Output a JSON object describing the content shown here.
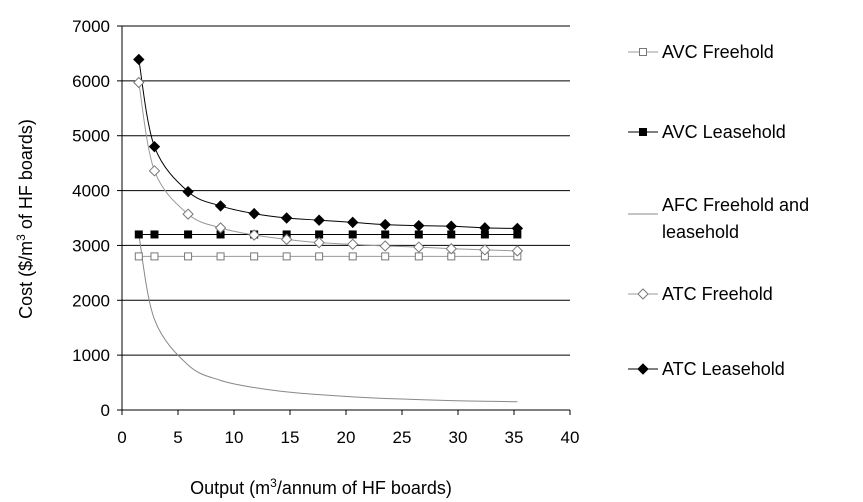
{
  "chart_data": {
    "type": "line",
    "title": "",
    "xlabel": {
      "pre": "Output (m",
      "sup": "3",
      "post": "/annum of HF boards)"
    },
    "ylabel": {
      "pre": "Cost ($/m",
      "sup": "3",
      "post": " of HF boards)"
    },
    "xlim": [
      0,
      40
    ],
    "ylim": [
      0,
      7000
    ],
    "xticks": [
      0,
      5,
      10,
      15,
      20,
      25,
      30,
      35,
      40
    ],
    "yticks": [
      0,
      1000,
      2000,
      3000,
      4000,
      5000,
      6000,
      7000
    ],
    "grid": "horizontal",
    "legend_position": "right",
    "x": [
      1.5,
      2.9,
      5.9,
      8.8,
      11.8,
      14.7,
      17.6,
      20.6,
      23.5,
      26.5,
      29.4,
      32.4,
      35.3
    ],
    "series": [
      {
        "name": "AVC Freehold",
        "marker": "square-open",
        "values": [
          2800,
          2800,
          2800,
          2800,
          2800,
          2800,
          2800,
          2800,
          2800,
          2800,
          2800,
          2800,
          2800
        ]
      },
      {
        "name": "AVC Leasehold",
        "marker": "square-filled",
        "values": [
          3200,
          3200,
          3200,
          3200,
          3200,
          3200,
          3200,
          3200,
          3200,
          3200,
          3200,
          3200,
          3200
        ]
      },
      {
        "name": "AFC Freehold and leasehold",
        "name_lines": [
          "AFC Freehold and",
          "leasehold"
        ],
        "marker": "none",
        "values": [
          3200,
          1650,
          820,
          540,
          410,
          330,
          280,
          240,
          210,
          190,
          170,
          160,
          150
        ]
      },
      {
        "name": "ATC Freehold",
        "marker": "diamond-open",
        "values": [
          5970,
          4360,
          3570,
          3320,
          3190,
          3110,
          3050,
          3020,
          2990,
          2970,
          2940,
          2920,
          2900
        ]
      },
      {
        "name": "ATC Leasehold",
        "marker": "diamond-filled",
        "values": [
          6390,
          4800,
          3980,
          3720,
          3580,
          3500,
          3460,
          3420,
          3380,
          3360,
          3350,
          3320,
          3310
        ]
      }
    ]
  }
}
